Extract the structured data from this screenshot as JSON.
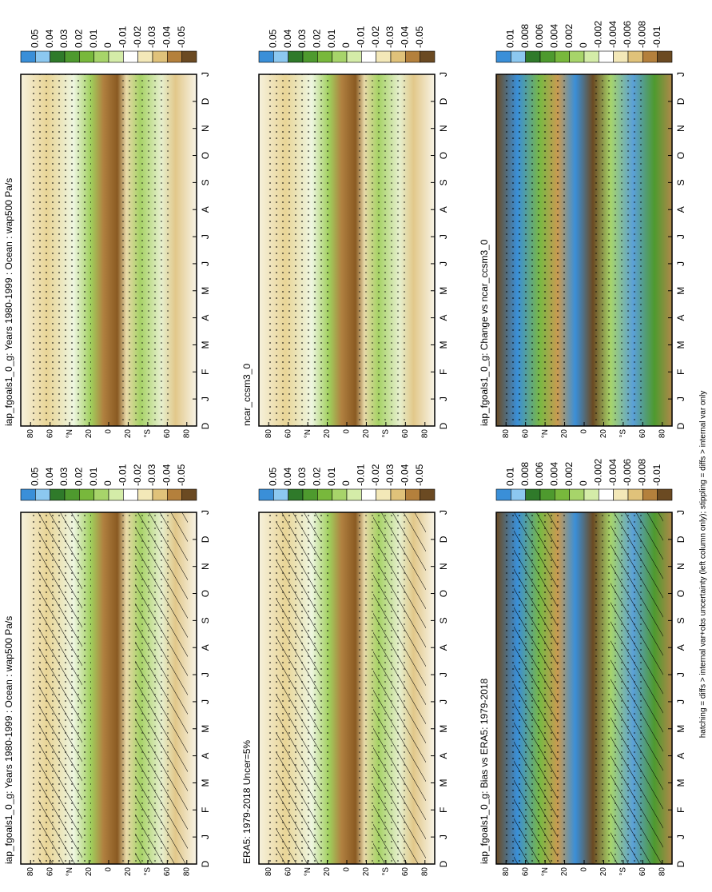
{
  "panels": [
    {
      "title": "iap_fgoals1_0_g: Years 1980-1999 : Ocean : wap500 Pa/s",
      "colorbar_labels": [
        "0.05",
        "0.04",
        "0.03",
        "0.02",
        "0.01",
        "0",
        "-0.01",
        "-0.02",
        "-0.03",
        "-0.04",
        "-0.05"
      ]
    },
    {
      "title": "iap_fgoals1_0_g: Years 1980-1999 : Ocean : wap500 Pa/s",
      "colorbar_labels": [
        "0.05",
        "0.04",
        "0.03",
        "0.02",
        "0.01",
        "0",
        "-0.01",
        "-0.02",
        "-0.03",
        "-0.04",
        "-0.05"
      ]
    },
    {
      "title": "ERA5: 1979-2018 Uncer=5%",
      "colorbar_labels": [
        "0.05",
        "0.04",
        "0.03",
        "0.02",
        "0.01",
        "0",
        "-0.01",
        "-0.02",
        "-0.03",
        "-0.04",
        "-0.05"
      ]
    },
    {
      "title": "ncar_ccsm3_0",
      "colorbar_labels": [
        "0.05",
        "0.04",
        "0.03",
        "0.02",
        "0.01",
        "0",
        "-0.01",
        "-0.02",
        "-0.03",
        "-0.04",
        "-0.05"
      ]
    },
    {
      "title": "iap_fgoals1_0_g: Bias vs ERA5: 1979-2018",
      "colorbar_labels": [
        "0.01",
        "0.008",
        "0.006",
        "0.004",
        "0.002",
        "0",
        "-0.002",
        "-0.004",
        "-0.006",
        "-0.008",
        "-0.01"
      ]
    },
    {
      "title": "iap_fgoals1_0_g: Change vs ncar_ccsm3_0",
      "colorbar_labels": [
        "0.01",
        "0.008",
        "0.006",
        "0.004",
        "0.002",
        "0",
        "-0.002",
        "-0.004",
        "-0.006",
        "-0.008",
        "-0.01"
      ]
    }
  ],
  "lat_labels": [
    "80",
    "60",
    "°N",
    "20",
    "0",
    "20",
    "°S",
    "60",
    "80"
  ],
  "month_labels": [
    "D",
    "J",
    "F",
    "M",
    "A",
    "M",
    "J",
    "J",
    "A",
    "S",
    "O",
    "N",
    "D",
    "J"
  ],
  "footnote": "hatching = diffs > internal var+obs uncertainty (left column only); stippling = diffs > internal var only"
}
